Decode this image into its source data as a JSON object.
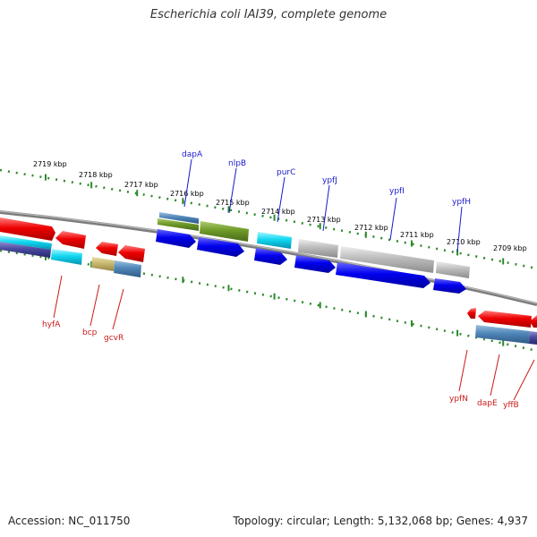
{
  "title": "Escherichia coli IAI39, complete genome",
  "footer": {
    "accession": "Accession: NC_011750",
    "topology": "Topology: circular; Length: 5,132,068 bp; Genes: 4,937"
  },
  "colors": {
    "ticks": "#2a8a2a",
    "backbone": "#8a8a8a",
    "forward_label": "#1a1acc",
    "reverse_label": "#cc1a1a"
  },
  "ticks": [
    "2719 kbp",
    "2718 kbp",
    "2717 kbp",
    "2716 kbp",
    "2715 kbp",
    "2714 kbp",
    "2713 kbp",
    "2712 kbp",
    "2711 kbp",
    "2710 kbp",
    "2709 kbp"
  ],
  "gene_labels_top": [
    "dapA",
    "nlpB",
    "purC",
    "ypfJ",
    "ypfI",
    "ypfH"
  ],
  "gene_labels_bottom": [
    "hyfA",
    "bcp",
    "gcvR",
    "ypfN",
    "dapE",
    "yffB"
  ]
}
